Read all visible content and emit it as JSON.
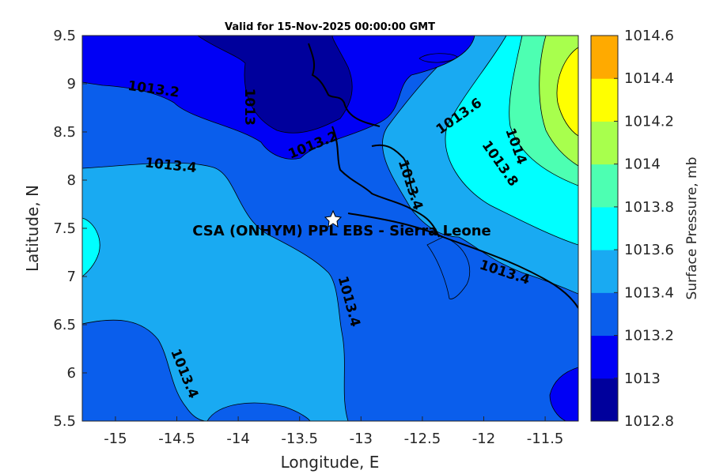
{
  "title": "Valid for 15-Nov-2025 00:00:00 GMT",
  "site_label": "CSA (ONHYM) PPL EBS  - Sierra Leone",
  "xlabel": "Longitude, E",
  "ylabel": "Latitude, N",
  "colorbar_title": "Surface Pressure, mb",
  "chart_data": {
    "type": "heatmap",
    "map_type": "contour-fill",
    "variable": "Surface Pressure",
    "units": "mb",
    "xlim": [
      -15.27,
      -11.23
    ],
    "ylim": [
      5.5,
      9.5
    ],
    "x_ticks": [
      -15,
      -14.5,
      -14,
      -13.5,
      -13,
      -12.5,
      -12,
      -11.5
    ],
    "x_tick_labels": [
      "-15",
      "-14.5",
      "-14",
      "-13.5",
      "-13",
      "-12.5",
      "-12",
      "-11.5"
    ],
    "y_ticks": [
      5.5,
      6,
      6.5,
      7,
      7.5,
      8,
      8.5,
      9,
      9.5
    ],
    "y_tick_labels": [
      "5.5",
      "6",
      "6.5",
      "7",
      "7.5",
      "8",
      "8.5",
      "9",
      "9.5"
    ],
    "colorbar": {
      "levels": [
        1012.8,
        1013,
        1013.2,
        1013.4,
        1013.6,
        1013.8,
        1014,
        1014.2,
        1014.4,
        1014.6
      ],
      "labels": [
        "1012.8",
        "1013",
        "1013.2",
        "1013.4",
        "1013.6",
        "1013.8",
        "1014",
        "1014.2",
        "1014.4",
        "1014.6"
      ],
      "colors": [
        "#00009c",
        "#0000f5",
        "#0a5eec",
        "#19aaf2",
        "#00ffff",
        "#4dffb2",
        "#a8ff4d",
        "#ffff00",
        "#ffaa00",
        "#ff5500"
      ]
    },
    "contour_labels": [
      {
        "text": "1013.2",
        "lon": -14.69,
        "lat": 8.94
      },
      {
        "text": "1013",
        "lon": -13.91,
        "lat": 8.76
      },
      {
        "text": "1013.2",
        "lon": -13.39,
        "lat": 8.36
      },
      {
        "text": "1013.4",
        "lon": -14.55,
        "lat": 8.15
      },
      {
        "text": "1013.4",
        "lon": -12.6,
        "lat": 7.95
      },
      {
        "text": "1013.6",
        "lon": -12.2,
        "lat": 8.66
      },
      {
        "text": "1014",
        "lon": -11.74,
        "lat": 8.35
      },
      {
        "text": "1013.8",
        "lon": -11.87,
        "lat": 8.17
      },
      {
        "text": "1013.4",
        "lon": -11.83,
        "lat": 7.04
      },
      {
        "text": "1013.4",
        "lon": -13.1,
        "lat": 6.74
      },
      {
        "text": "1013.4",
        "lon": -14.44,
        "lat": 5.99
      }
    ],
    "site": {
      "lon": -13.25,
      "lat": 7.6,
      "marker": "star"
    },
    "grid": false,
    "colorbar_position": "right"
  }
}
